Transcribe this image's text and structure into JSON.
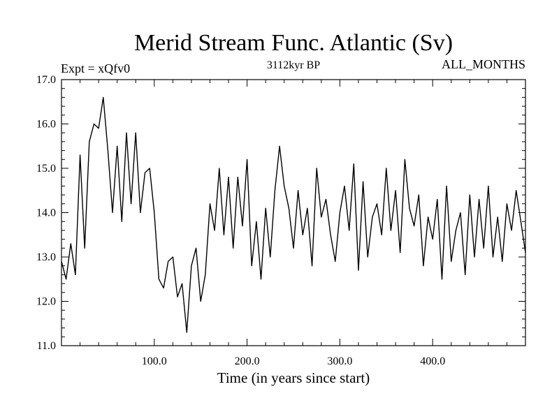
{
  "chart_data": {
    "type": "line",
    "title": "Merid Stream Func. Atlantic (Sv)",
    "subtitle": "3112kyr BP",
    "experiment_label": "Expt = xQfv0",
    "period_label": "ALL_MONTHS",
    "xlabel": "Time (in years since start)",
    "ylabel": "",
    "xlim": [
      0,
      500
    ],
    "ylim": [
      11.0,
      17.0
    ],
    "x_ticks": [
      100,
      200,
      300,
      400
    ],
    "x_tick_labels": [
      "100.0",
      "200.0",
      "300.0",
      "400.0"
    ],
    "y_ticks": [
      11,
      12,
      13,
      14,
      15,
      16,
      17
    ],
    "y_tick_labels": [
      "11.0",
      "12.0",
      "13.0",
      "14.0",
      "15.0",
      "16.0",
      "17.0"
    ],
    "grid": false,
    "series": [
      {
        "name": "Merid Stream Func. Atlantic",
        "color": "#000000",
        "x": [
          0,
          5,
          10,
          15,
          20,
          25,
          30,
          35,
          40,
          45,
          50,
          55,
          60,
          65,
          70,
          75,
          80,
          85,
          90,
          95,
          100,
          105,
          110,
          115,
          120,
          125,
          130,
          135,
          140,
          145,
          150,
          155,
          160,
          165,
          170,
          175,
          180,
          185,
          190,
          195,
          200,
          205,
          210,
          215,
          220,
          225,
          230,
          235,
          240,
          245,
          250,
          255,
          260,
          265,
          270,
          275,
          280,
          285,
          290,
          295,
          300,
          305,
          310,
          315,
          320,
          325,
          330,
          335,
          340,
          345,
          350,
          355,
          360,
          365,
          370,
          375,
          380,
          385,
          390,
          395,
          400,
          405,
          410,
          415,
          420,
          425,
          430,
          435,
          440,
          445,
          450,
          455,
          460,
          465,
          470,
          475,
          480,
          485,
          490,
          495,
          500
        ],
        "values": [
          12.9,
          12.5,
          13.3,
          12.6,
          15.3,
          13.2,
          15.6,
          16.0,
          15.9,
          16.6,
          15.4,
          14.0,
          15.5,
          13.8,
          15.8,
          14.2,
          15.8,
          14.0,
          14.9,
          15.0,
          14.0,
          12.5,
          12.3,
          12.9,
          13.0,
          12.1,
          12.4,
          11.3,
          12.8,
          13.2,
          12.0,
          12.6,
          14.2,
          13.6,
          15.0,
          13.5,
          14.8,
          13.2,
          14.8,
          13.7,
          15.2,
          12.8,
          13.8,
          12.5,
          14.1,
          13.0,
          14.5,
          15.5,
          14.6,
          14.1,
          13.2,
          14.5,
          13.5,
          14.1,
          12.8,
          15.0,
          13.9,
          14.3,
          13.5,
          12.9,
          14.0,
          14.6,
          13.6,
          15.1,
          12.7,
          14.7,
          13.0,
          13.9,
          14.2,
          13.5,
          15.0,
          13.6,
          14.5,
          13.1,
          15.2,
          14.1,
          13.7,
          14.4,
          12.8,
          13.9,
          13.4,
          14.3,
          12.5,
          14.6,
          12.9,
          13.6,
          14.0,
          12.6,
          14.4,
          13.0,
          14.3,
          13.2,
          14.6,
          13.0,
          13.9,
          12.9,
          14.2,
          13.6,
          14.5,
          13.8,
          13.1
        ]
      }
    ]
  }
}
